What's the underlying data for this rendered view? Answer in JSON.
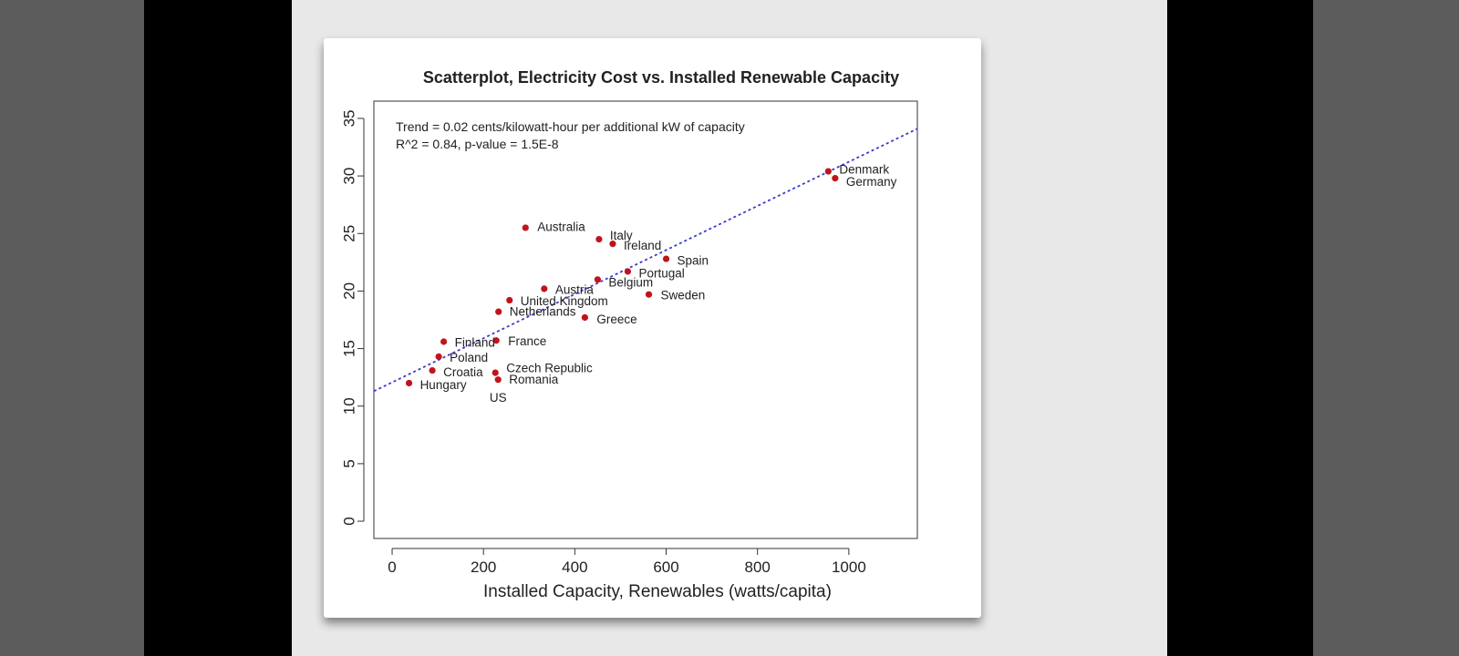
{
  "chart_data": {
    "type": "scatter",
    "title": "Scatterplot, Electricity Cost vs. Installed Renewable Capacity",
    "xlabel": "Installed Capacity, Renewables (watts/capita)",
    "ylabel": "",
    "xlim": [
      -40,
      1150
    ],
    "ylim": [
      -1.5,
      36.5
    ],
    "x_ticks": [
      0,
      200,
      400,
      600,
      800,
      1000
    ],
    "y_ticks": [
      0,
      5,
      10,
      15,
      20,
      25,
      30,
      35
    ],
    "grid": false,
    "annotations": [
      "Trend = 0.02 cents/kilowatt-hour per additional kW of capacity",
      "R^2 = 0.84, p-value = 1.5E-8"
    ],
    "trend": {
      "x": [
        -40,
        1150
      ],
      "y": [
        11.3,
        34.1
      ]
    },
    "point_color": "#c0141c",
    "trend_color": "#3b3bd0",
    "points": [
      {
        "label": "Denmark",
        "x": 955,
        "y": 30.4
      },
      {
        "label": "Germany",
        "x": 970,
        "y": 29.8
      },
      {
        "label": "Australia",
        "x": 292,
        "y": 25.5
      },
      {
        "label": "Italy",
        "x": 453,
        "y": 24.5
      },
      {
        "label": "Ireland",
        "x": 483,
        "y": 24.1
      },
      {
        "label": "Spain",
        "x": 600,
        "y": 22.8
      },
      {
        "label": "Portugal",
        "x": 516,
        "y": 21.7
      },
      {
        "label": "Belgium",
        "x": 450,
        "y": 21.0
      },
      {
        "label": "Austria",
        "x": 333,
        "y": 20.2
      },
      {
        "label": "Sweden",
        "x": 562,
        "y": 19.7
      },
      {
        "label": "United Kingdom",
        "x": 257,
        "y": 19.2
      },
      {
        "label": "Netherlands",
        "x": 233,
        "y": 18.2
      },
      {
        "label": "Greece",
        "x": 422,
        "y": 17.7
      },
      {
        "label": "France",
        "x": 228,
        "y": 15.7
      },
      {
        "label": "Finland",
        "x": 113,
        "y": 15.6
      },
      {
        "label": "Poland",
        "x": 102,
        "y": 14.3
      },
      {
        "label": "Croatia",
        "x": 88,
        "y": 13.1
      },
      {
        "label": "Czech Republic",
        "x": 226,
        "y": 12.9
      },
      {
        "label": "Romania",
        "x": 232,
        "y": 12.3
      },
      {
        "label": "Hungary",
        "x": 37,
        "y": 12.0
      },
      {
        "label": "US",
        "x": 232,
        "y": 12.3
      }
    ]
  }
}
